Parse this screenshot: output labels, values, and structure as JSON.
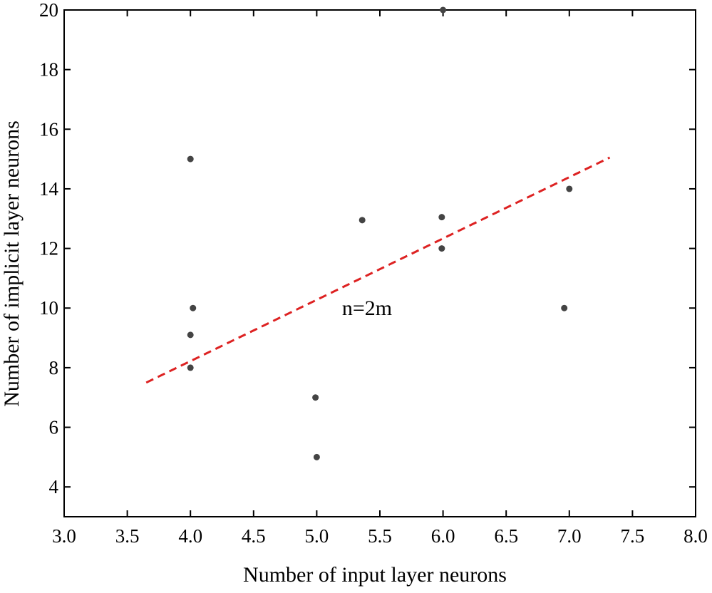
{
  "chart_data": {
    "type": "scatter",
    "xlabel": "Number of input layer neurons",
    "ylabel": "Number of implicit layer neurons",
    "xlim": [
      3.0,
      8.0
    ],
    "ylim": [
      3.0,
      20.0
    ],
    "xticks": [
      "3.0",
      "3.5",
      "4.0",
      "4.5",
      "5.0",
      "5.5",
      "6.0",
      "6.5",
      "7.0",
      "7.5",
      "8.0"
    ],
    "yticks": [
      "4",
      "6",
      "8",
      "10",
      "12",
      "14",
      "16",
      "18",
      "20"
    ],
    "grid": false,
    "points": [
      {
        "x": 4.0,
        "y": 15
      },
      {
        "x": 4.02,
        "y": 10
      },
      {
        "x": 4.0,
        "y": 9.1
      },
      {
        "x": 4.0,
        "y": 8
      },
      {
        "x": 4.99,
        "y": 7
      },
      {
        "x": 5.0,
        "y": 5
      },
      {
        "x": 5.36,
        "y": 12.95
      },
      {
        "x": 5.99,
        "y": 13.05
      },
      {
        "x": 5.99,
        "y": 12
      },
      {
        "x": 6.0,
        "y": 20
      },
      {
        "x": 7.0,
        "y": 14
      },
      {
        "x": 6.96,
        "y": 10
      }
    ],
    "fit_line": {
      "x": [
        3.65,
        7.32
      ],
      "y": [
        7.5,
        15.05
      ],
      "color": "#dd2222",
      "style": "dashed"
    },
    "annotation": {
      "text": "n=2m",
      "x": 5.2,
      "y": 10
    }
  },
  "colors": {
    "point": "#444444",
    "fit_line": "#dd2222"
  }
}
